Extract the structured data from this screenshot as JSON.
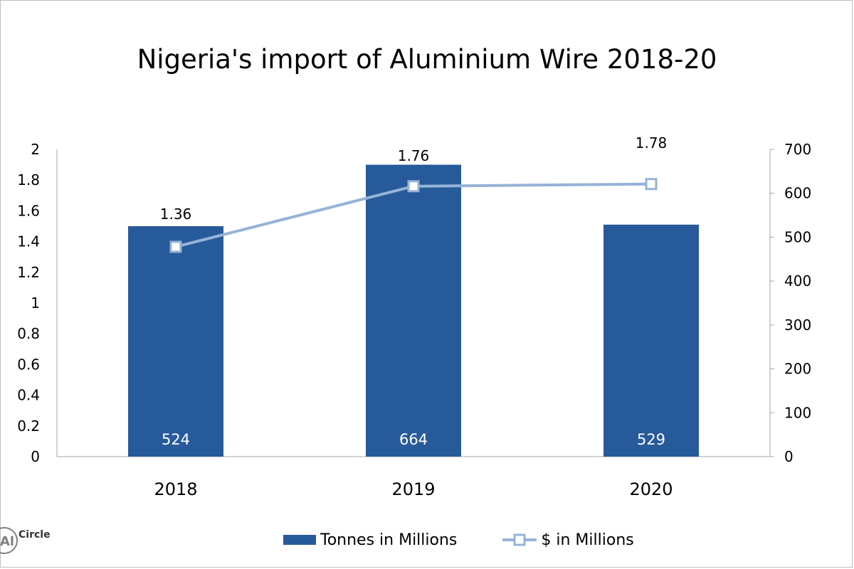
{
  "title": "Nigeria's import of Aluminium Wire 2018-20",
  "chart_data": {
    "type": "bar",
    "categories": [
      "2018",
      "2019",
      "2020"
    ],
    "series": [
      {
        "name": "Tonnes in Millions",
        "type": "bar",
        "axis": "left",
        "values": [
          1.5,
          1.9,
          1.51
        ],
        "labels": [
          "1.36",
          "1.76",
          "1.78"
        ],
        "inner_labels": [
          "524",
          "664",
          "529"
        ],
        "color": "#275a9a"
      },
      {
        "name": "$ in Millions",
        "type": "line",
        "axis": "right",
        "values": [
          478,
          616,
          621
        ],
        "color": "#95b3d7"
      }
    ],
    "y_left": {
      "ylim": [
        0,
        2
      ],
      "ticks": [
        "0",
        "0.2",
        "0.4",
        "0.6",
        "0.8",
        "1",
        "1.2",
        "1.4",
        "1.6",
        "1.8",
        "2"
      ]
    },
    "y_right": {
      "ylim": [
        0,
        700
      ],
      "ticks": [
        "0",
        "100",
        "200",
        "300",
        "400",
        "500",
        "600",
        "700"
      ]
    },
    "legend_position": "bottom",
    "grid": false
  },
  "logo": {
    "text": "Circle",
    "icon": "alcircle-logo"
  }
}
